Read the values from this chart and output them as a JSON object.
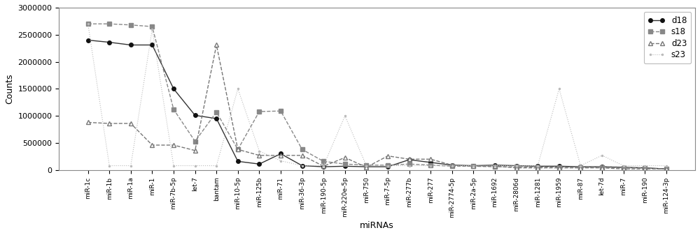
{
  "categories": [
    "miR-1c",
    "miR-1b",
    "miR-1a",
    "miR-1",
    "miR-7b-5p",
    "let-7",
    "bantam",
    "miR-10-5p",
    "miR-125b",
    "miR-71",
    "miR-36-3p",
    "miR-190-5p",
    "miR-220e-5p",
    "miR-750",
    "miR-7-5p",
    "miR-277b",
    "miR-277",
    "miR-2774-5p",
    "miR-2a-5p",
    "miR-1692",
    "miR-2806d",
    "miR-1281",
    "miR-1959",
    "miR-87",
    "let-7d",
    "miR-7",
    "miR-190",
    "miR-124-3p"
  ],
  "d18": [
    2400000,
    2360000,
    2310000,
    2310000,
    1500000,
    1010000,
    950000,
    160000,
    110000,
    300000,
    80000,
    60000,
    70000,
    60000,
    60000,
    190000,
    140000,
    90000,
    80000,
    90000,
    80000,
    70000,
    70000,
    60000,
    60000,
    50000,
    40000,
    20000
  ],
  "s18": [
    2700000,
    2700000,
    2680000,
    2650000,
    1120000,
    530000,
    1070000,
    380000,
    1080000,
    1090000,
    380000,
    160000,
    110000,
    90000,
    90000,
    110000,
    90000,
    70000,
    70000,
    60000,
    60000,
    55000,
    55000,
    50000,
    50000,
    40000,
    35000,
    20000
  ],
  "d23": [
    880000,
    860000,
    860000,
    460000,
    460000,
    360000,
    2310000,
    380000,
    270000,
    270000,
    270000,
    70000,
    230000,
    50000,
    260000,
    200000,
    200000,
    90000,
    70000,
    70000,
    40000,
    40000,
    40000,
    40000,
    40000,
    20000,
    20000,
    20000
  ],
  "s23": [
    2700000,
    80000,
    80000,
    2600000,
    80000,
    80000,
    80000,
    1500000,
    350000,
    170000,
    80000,
    80000,
    1000000,
    80000,
    80000,
    80000,
    80000,
    80000,
    80000,
    80000,
    80000,
    80000,
    1500000,
    80000,
    270000,
    80000,
    80000,
    80000
  ],
  "ylim": [
    0,
    3000000
  ],
  "yticks": [
    0,
    500000,
    1000000,
    1500000,
    2000000,
    2500000,
    3000000
  ],
  "ylabel": "Counts",
  "xlabel": "miRNAs",
  "d18_color": "#333333",
  "s18_color": "#888888",
  "d23_color": "#777777",
  "s23_color": "#bbbbbb"
}
